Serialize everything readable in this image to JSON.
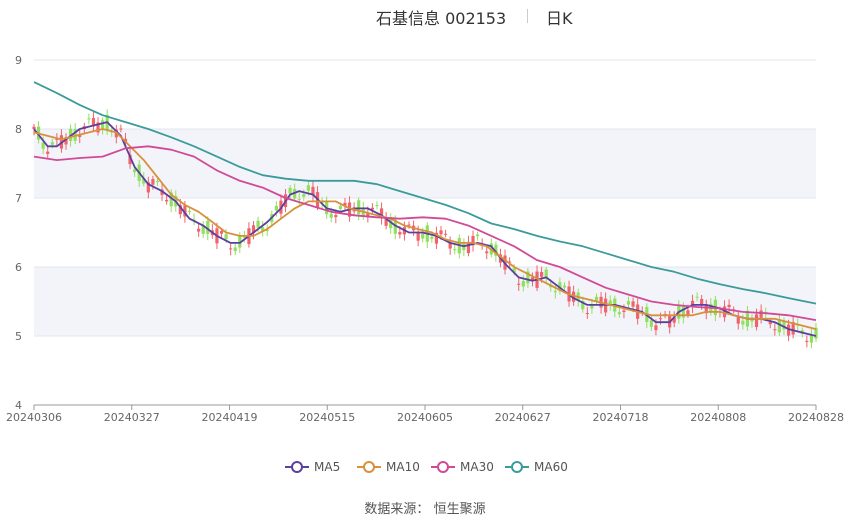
{
  "header": {
    "title": "石基信息 002153",
    "period": "日K"
  },
  "source": {
    "label": "数据来源：",
    "provider": "恒生聚源"
  },
  "chart_data": {
    "type": "candlestick",
    "y_ticks": [
      "4",
      "5",
      "6",
      "7",
      "8",
      "9"
    ],
    "ylim": [
      4,
      9
    ],
    "x_ticks": [
      "20240306",
      "20240327",
      "20240419",
      "20240515",
      "20240605",
      "20240627",
      "20240718",
      "20240808",
      "20240828"
    ],
    "grid": "horizontal",
    "legend_position": "bottom",
    "colors": {
      "up": "#f0636c",
      "down": "#90e060",
      "MA5": "#5b3f9e",
      "MA10": "#d8903c",
      "MA30": "#d04a96",
      "MA60": "#3b9b9b",
      "band": "#f3f4fa"
    },
    "legend": [
      "MA5",
      "MA10",
      "MA30",
      "MA60"
    ],
    "series": [
      {
        "name": "MA5",
        "points": [
          [
            0,
            8.0
          ],
          [
            3,
            7.75
          ],
          [
            5,
            7.75
          ],
          [
            7,
            7.85
          ],
          [
            10,
            8.0
          ],
          [
            13,
            8.05
          ],
          [
            16,
            8.1
          ],
          [
            19,
            7.9
          ],
          [
            22,
            7.45
          ],
          [
            25,
            7.2
          ],
          [
            28,
            7.1
          ],
          [
            31,
            6.95
          ],
          [
            34,
            6.7
          ],
          [
            37,
            6.6
          ],
          [
            40,
            6.45
          ],
          [
            43,
            6.35
          ],
          [
            45,
            6.35
          ],
          [
            48,
            6.5
          ],
          [
            51,
            6.65
          ],
          [
            54,
            6.85
          ],
          [
            56,
            7.05
          ],
          [
            58,
            7.1
          ],
          [
            61,
            7.05
          ],
          [
            64,
            6.85
          ],
          [
            67,
            6.8
          ],
          [
            70,
            6.85
          ],
          [
            73,
            6.85
          ],
          [
            76,
            6.75
          ],
          [
            79,
            6.6
          ],
          [
            82,
            6.5
          ],
          [
            85,
            6.5
          ],
          [
            88,
            6.45
          ],
          [
            91,
            6.35
          ],
          [
            94,
            6.3
          ],
          [
            97,
            6.35
          ],
          [
            100,
            6.3
          ],
          [
            103,
            6.05
          ],
          [
            106,
            5.85
          ],
          [
            109,
            5.8
          ],
          [
            112,
            5.85
          ],
          [
            115,
            5.7
          ],
          [
            118,
            5.55
          ],
          [
            121,
            5.45
          ],
          [
            124,
            5.45
          ],
          [
            127,
            5.45
          ],
          [
            130,
            5.4
          ],
          [
            133,
            5.35
          ],
          [
            136,
            5.2
          ],
          [
            139,
            5.2
          ],
          [
            141,
            5.35
          ],
          [
            144,
            5.45
          ],
          [
            147,
            5.45
          ],
          [
            150,
            5.4
          ],
          [
            153,
            5.3
          ],
          [
            156,
            5.25
          ],
          [
            159,
            5.25
          ],
          [
            162,
            5.2
          ],
          [
            165,
            5.1
          ],
          [
            168,
            5.05
          ],
          [
            171,
            5.0
          ]
        ]
      },
      {
        "name": "MA10",
        "points": [
          [
            0,
            7.95
          ],
          [
            3,
            7.9
          ],
          [
            6,
            7.85
          ],
          [
            9,
            7.9
          ],
          [
            12,
            7.95
          ],
          [
            15,
            8.0
          ],
          [
            18,
            7.95
          ],
          [
            21,
            7.75
          ],
          [
            24,
            7.55
          ],
          [
            27,
            7.3
          ],
          [
            30,
            7.05
          ],
          [
            33,
            6.9
          ],
          [
            36,
            6.8
          ],
          [
            39,
            6.65
          ],
          [
            42,
            6.5
          ],
          [
            45,
            6.45
          ],
          [
            48,
            6.45
          ],
          [
            51,
            6.55
          ],
          [
            54,
            6.7
          ],
          [
            57,
            6.85
          ],
          [
            60,
            6.95
          ],
          [
            63,
            6.95
          ],
          [
            66,
            6.95
          ],
          [
            69,
            6.85
          ],
          [
            72,
            6.8
          ],
          [
            75,
            6.75
          ],
          [
            78,
            6.7
          ],
          [
            81,
            6.6
          ],
          [
            84,
            6.55
          ],
          [
            87,
            6.5
          ],
          [
            90,
            6.4
          ],
          [
            93,
            6.35
          ],
          [
            96,
            6.35
          ],
          [
            99,
            6.3
          ],
          [
            102,
            6.15
          ],
          [
            105,
            6.0
          ],
          [
            108,
            5.9
          ],
          [
            111,
            5.8
          ],
          [
            114,
            5.7
          ],
          [
            117,
            5.6
          ],
          [
            120,
            5.55
          ],
          [
            123,
            5.5
          ],
          [
            126,
            5.45
          ],
          [
            129,
            5.4
          ],
          [
            132,
            5.35
          ],
          [
            135,
            5.3
          ],
          [
            138,
            5.3
          ],
          [
            141,
            5.3
          ],
          [
            144,
            5.3
          ],
          [
            147,
            5.35
          ],
          [
            150,
            5.35
          ],
          [
            153,
            5.3
          ],
          [
            156,
            5.25
          ],
          [
            159,
            5.25
          ],
          [
            162,
            5.25
          ],
          [
            165,
            5.2
          ],
          [
            168,
            5.15
          ],
          [
            171,
            5.1
          ]
        ]
      },
      {
        "name": "MA30",
        "points": [
          [
            0,
            7.6
          ],
          [
            5,
            7.55
          ],
          [
            10,
            7.58
          ],
          [
            15,
            7.6
          ],
          [
            20,
            7.72
          ],
          [
            25,
            7.75
          ],
          [
            30,
            7.7
          ],
          [
            35,
            7.6
          ],
          [
            40,
            7.4
          ],
          [
            45,
            7.25
          ],
          [
            50,
            7.15
          ],
          [
            55,
            7.0
          ],
          [
            60,
            6.9
          ],
          [
            65,
            6.8
          ],
          [
            70,
            6.75
          ],
          [
            75,
            6.72
          ],
          [
            80,
            6.7
          ],
          [
            85,
            6.72
          ],
          [
            90,
            6.7
          ],
          [
            95,
            6.6
          ],
          [
            100,
            6.45
          ],
          [
            105,
            6.3
          ],
          [
            110,
            6.1
          ],
          [
            115,
            6.0
          ],
          [
            120,
            5.85
          ],
          [
            125,
            5.7
          ],
          [
            130,
            5.6
          ],
          [
            135,
            5.5
          ],
          [
            140,
            5.45
          ],
          [
            145,
            5.42
          ],
          [
            150,
            5.4
          ],
          [
            155,
            5.35
          ],
          [
            160,
            5.33
          ],
          [
            165,
            5.3
          ],
          [
            171,
            5.23
          ]
        ]
      },
      {
        "name": "MA60",
        "points": [
          [
            0,
            8.68
          ],
          [
            5,
            8.52
          ],
          [
            10,
            8.35
          ],
          [
            15,
            8.2
          ],
          [
            20,
            8.1
          ],
          [
            25,
            8.0
          ],
          [
            30,
            7.88
          ],
          [
            35,
            7.75
          ],
          [
            40,
            7.6
          ],
          [
            45,
            7.45
          ],
          [
            50,
            7.33
          ],
          [
            55,
            7.28
          ],
          [
            60,
            7.25
          ],
          [
            65,
            7.25
          ],
          [
            70,
            7.25
          ],
          [
            75,
            7.2
          ],
          [
            80,
            7.1
          ],
          [
            85,
            7.0
          ],
          [
            90,
            6.9
          ],
          [
            95,
            6.78
          ],
          [
            100,
            6.63
          ],
          [
            105,
            6.55
          ],
          [
            110,
            6.45
          ],
          [
            115,
            6.37
          ],
          [
            120,
            6.3
          ],
          [
            125,
            6.2
          ],
          [
            130,
            6.1
          ],
          [
            135,
            6.0
          ],
          [
            140,
            5.93
          ],
          [
            145,
            5.83
          ],
          [
            150,
            5.75
          ],
          [
            155,
            5.68
          ],
          [
            160,
            5.62
          ],
          [
            165,
            5.55
          ],
          [
            171,
            5.47
          ]
        ]
      }
    ]
  }
}
